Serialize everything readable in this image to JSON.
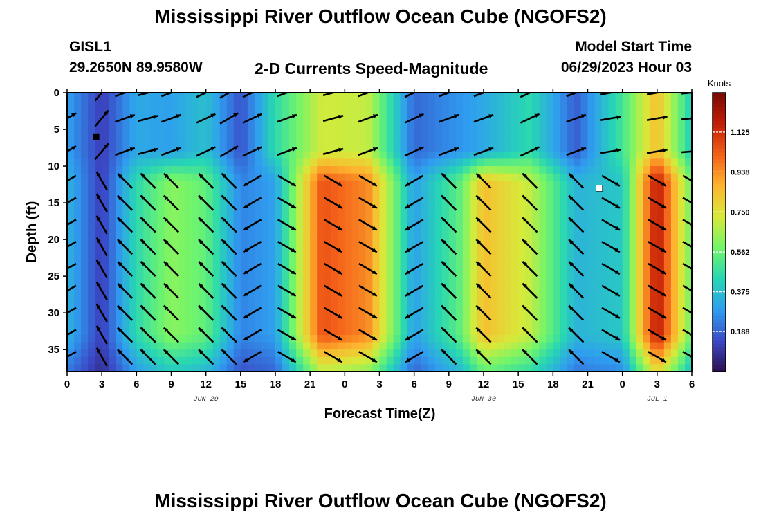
{
  "page": {
    "title": "Mississippi River Outflow Ocean Cube (NGOFS2)",
    "station": "GISL1",
    "coords": "29.2650N  89.9580W",
    "subtitle": "2-D Currents Speed-Magnitude",
    "model_start_label": "Model Start Time",
    "model_start_value": "06/29/2023 Hour 03",
    "bottom_title": "Mississippi River Outflow Ocean Cube (NGOFS2)"
  },
  "chart_data": {
    "type": "heatmap",
    "xlabel": "Forecast Time(Z)",
    "ylabel": "Depth (ft)",
    "x_range_hours": [
      0,
      54
    ],
    "y_range_ft": [
      0,
      38
    ],
    "x_tick_labels": [
      "0",
      "3",
      "6",
      "9",
      "12",
      "15",
      "18",
      "21",
      "0",
      "3",
      "6",
      "9",
      "12",
      "15",
      "18",
      "21",
      "0",
      "3",
      "6"
    ],
    "y_ticks": [
      0,
      5,
      10,
      15,
      20,
      25,
      30,
      35
    ],
    "date_labels": [
      {
        "text": "JUN 29",
        "hour": 12
      },
      {
        "text": "JUN 30",
        "hour": 36
      },
      {
        "text": "JUL 1",
        "hour": 51
      }
    ],
    "colorbar": {
      "unit": "Knots",
      "range": [
        0.0,
        1.31
      ],
      "ticks": [
        "0.188",
        "0.375",
        "0.562",
        "0.750",
        "0.938",
        "1.125"
      ],
      "tick_values": [
        0.188,
        0.375,
        0.562,
        0.75,
        0.938,
        1.125
      ],
      "colors": [
        "#2b0f4e",
        "#3b49c6",
        "#2f9df0",
        "#27d6b4",
        "#72f56a",
        "#d7ea3a",
        "#fdb52e",
        "#f4611a",
        "#c21e06",
        "#7a0a03"
      ]
    },
    "speed_by_hour": {
      "hours": [
        0,
        3,
        6,
        9,
        12,
        15,
        18,
        22,
        26,
        30,
        34,
        36,
        40,
        44,
        48,
        51,
        54
      ],
      "upper_layer_knots": [
        0.3,
        0.12,
        0.32,
        0.3,
        0.38,
        0.16,
        0.45,
        0.72,
        0.7,
        0.2,
        0.28,
        0.32,
        0.45,
        0.18,
        0.5,
        0.85,
        0.4
      ],
      "lower_layer_knots": [
        0.35,
        0.12,
        0.45,
        0.62,
        0.55,
        0.25,
        0.3,
        1.05,
        0.95,
        0.3,
        0.55,
        0.85,
        0.7,
        0.35,
        0.4,
        1.2,
        0.55
      ]
    },
    "flow_direction_by_hour": {
      "hours": [
        0,
        3,
        5,
        7,
        9,
        12,
        14,
        16,
        19,
        23,
        26,
        30,
        33,
        36,
        40,
        44,
        47,
        51,
        54
      ],
      "lower_layer_deg": [
        210,
        120,
        135,
        135,
        135,
        135,
        135,
        210,
        330,
        330,
        330,
        210,
        135,
        135,
        135,
        135,
        330,
        330,
        330
      ],
      "upper_layer_deg": [
        30,
        50,
        20,
        15,
        20,
        25,
        30,
        25,
        20,
        15,
        20,
        25,
        20,
        20,
        25,
        20,
        10,
        10,
        5
      ]
    },
    "markers": [
      {
        "hour": 2.5,
        "depth_ft": 6,
        "color": "#000000"
      },
      {
        "hour": 46,
        "depth_ft": 13,
        "color": "#ffffff"
      }
    ]
  }
}
